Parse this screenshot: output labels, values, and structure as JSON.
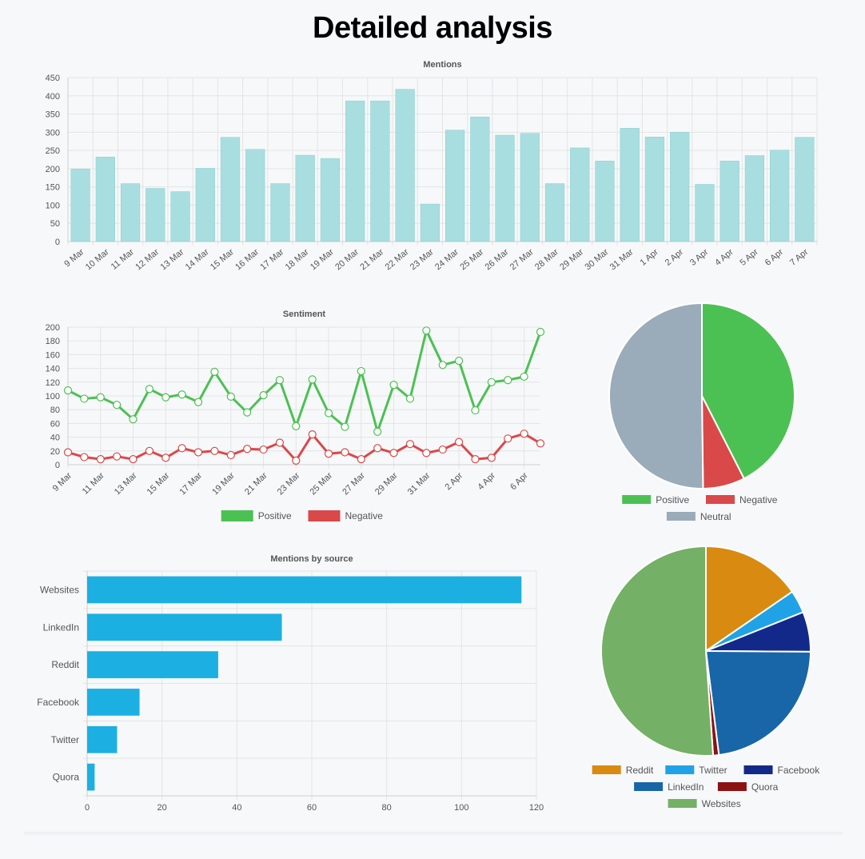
{
  "page": {
    "title": "Detailed analysis"
  },
  "colors": {
    "mentions_bar": "#a8dedf",
    "mentions_bar_border": "#8ccfd1",
    "positive": "#4cc153",
    "negative": "#d94949",
    "neutral": "#9aabb9",
    "source_bar": "#1bb0e1",
    "reddit": "#d98a10",
    "twitter": "#20a2e6",
    "facebook": "#13298a",
    "linkedin": "#1866a8",
    "quora": "#8c1212",
    "websites": "#74b065"
  },
  "chart_data": [
    {
      "id": "mentions",
      "type": "bar",
      "title": "Mentions",
      "xlabel": "",
      "ylabel": "",
      "ylim": [
        0,
        450
      ],
      "yticks": [
        0,
        50,
        100,
        150,
        200,
        250,
        300,
        350,
        400,
        450
      ],
      "categories": [
        "9 Mar",
        "10 Mar",
        "11 Mar",
        "12 Mar",
        "13 Mar",
        "14 Mar",
        "15 Mar",
        "16 Mar",
        "17 Mar",
        "18 Mar",
        "19 Mar",
        "20 Mar",
        "21 Mar",
        "22 Mar",
        "23 Mar",
        "24 Mar",
        "25 Mar",
        "26 Mar",
        "27 Mar",
        "28 Mar",
        "29 Mar",
        "30 Mar",
        "31 Mar",
        "1 Apr",
        "2 Apr",
        "3 Apr",
        "4 Apr",
        "5 Apr",
        "6 Apr",
        "7 Apr"
      ],
      "values": [
        199,
        232,
        159,
        146,
        137,
        201,
        286,
        253,
        159,
        237,
        228,
        386,
        386,
        418,
        103,
        306,
        342,
        292,
        297,
        159,
        257,
        221,
        311,
        287,
        300,
        157,
        221,
        236,
        251,
        286
      ]
    },
    {
      "id": "sentiment",
      "type": "line",
      "title": "Sentiment",
      "xlabel": "",
      "ylabel": "",
      "ylim": [
        0,
        200
      ],
      "yticks": [
        0,
        20,
        40,
        60,
        80,
        100,
        120,
        140,
        160,
        180,
        200
      ],
      "x": [
        "9 Mar",
        "10 Mar",
        "11 Mar",
        "12 Mar",
        "13 Mar",
        "14 Mar",
        "15 Mar",
        "16 Mar",
        "17 Mar",
        "18 Mar",
        "19 Mar",
        "20 Mar",
        "21 Mar",
        "22 Mar",
        "23 Mar",
        "24 Mar",
        "25 Mar",
        "26 Mar",
        "27 Mar",
        "28 Mar",
        "29 Mar",
        "30 Mar",
        "31 Mar",
        "1 Apr",
        "2 Apr",
        "3 Apr",
        "4 Apr",
        "5 Apr",
        "6 Apr",
        "7 Apr"
      ],
      "xtick_labels": [
        "9 Mar",
        "11 Mar",
        "13 Mar",
        "15 Mar",
        "17 Mar",
        "19 Mar",
        "21 Mar",
        "23 Mar",
        "25 Mar",
        "27 Mar",
        "29 Mar",
        "31 Mar",
        "2 Apr",
        "4 Apr",
        "6 Apr"
      ],
      "series": [
        {
          "name": "Positive",
          "values": [
            108,
            96,
            98,
            87,
            66,
            110,
            98,
            102,
            91,
            135,
            99,
            76,
            101,
            123,
            56,
            124,
            75,
            55,
            136,
            48,
            116,
            96,
            195,
            145,
            151,
            79,
            120,
            123,
            128,
            193
          ]
        },
        {
          "name": "Negative",
          "values": [
            18,
            11,
            8,
            12,
            8,
            20,
            10,
            24,
            18,
            20,
            14,
            23,
            22,
            32,
            6,
            44,
            16,
            18,
            8,
            24,
            17,
            30,
            17,
            22,
            33,
            8,
            10,
            38,
            45,
            31
          ]
        }
      ],
      "legend": [
        "Positive",
        "Negative"
      ]
    },
    {
      "id": "sentiment-pie",
      "type": "pie",
      "title": "",
      "labels": [
        "Positive",
        "Negative",
        "Neutral"
      ],
      "values": [
        42.5,
        7.3,
        50.2
      ],
      "legend": [
        "Positive",
        "Negative",
        "Neutral"
      ]
    },
    {
      "id": "source",
      "type": "bar",
      "orientation": "horizontal",
      "title": "Mentions by source",
      "xlabel": "",
      "ylabel": "",
      "xlim": [
        0,
        120
      ],
      "xticks": [
        0,
        20,
        40,
        60,
        80,
        100,
        120
      ],
      "categories": [
        "Websites",
        "LinkedIn",
        "Reddit",
        "Facebook",
        "Twitter",
        "Quora"
      ],
      "values": [
        116,
        52,
        35,
        14,
        8,
        2
      ]
    },
    {
      "id": "source-pie",
      "type": "pie",
      "title": "",
      "labels": [
        "Reddit",
        "Twitter",
        "Facebook",
        "LinkedIn",
        "Quora",
        "Websites"
      ],
      "values": [
        35,
        8,
        14,
        52,
        2,
        116
      ],
      "legend": [
        "Reddit",
        "Twitter",
        "Facebook",
        "LinkedIn",
        "Quora",
        "Websites"
      ]
    }
  ]
}
